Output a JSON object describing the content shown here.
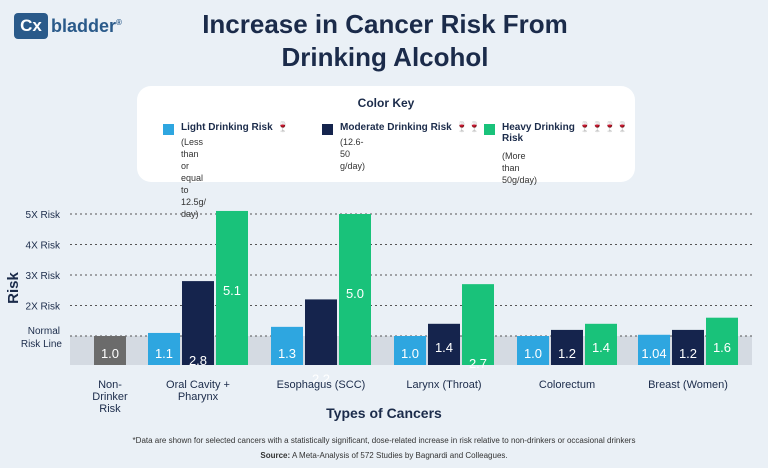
{
  "logo": {
    "mark": "Cx",
    "text": "bladder",
    "reg": "®"
  },
  "title_line1": "Increase in Cancer Risk From",
  "title_line2": "Drinking Alcohol",
  "key": {
    "title": "Color Key",
    "items": [
      {
        "label": "Light Drinking Risk",
        "glasses": "🍷",
        "desc1": "(Less than or equal to 12.5g/",
        "desc2": "day)",
        "color": "#2ea6e0"
      },
      {
        "label": "Moderate Drinking Risk",
        "glasses": "🍷🍷",
        "desc1": "(12.6-50 g/day)",
        "desc2": "",
        "color": "#15244d"
      },
      {
        "label": "Heavy Drinking",
        "label2": "Risk",
        "glasses": "🍷🍷🍷🍷",
        "desc1": "(More than 50g/day)",
        "desc2": "",
        "color": "#19c27a"
      }
    ]
  },
  "footnote": "*Data are shown for selected cancers with a statistically significant, dose-related increase in risk relative to non-drinkers or occasional drinkers",
  "source_label": "Source:",
  "source_text": " A Meta-Analysis of 572 Studies by Bagnardi and Colleagues.",
  "chart_data": {
    "type": "bar",
    "ylabel": "Risk",
    "xlabel": "Types of Cancers",
    "ylim": [
      0.8,
      5.1
    ],
    "yticks": [
      {
        "value": 1,
        "label1": "Normal",
        "label2": "Risk Line"
      },
      {
        "value": 2,
        "label1": "2X Risk",
        "label2": ""
      },
      {
        "value": 3,
        "label1": "3X Risk",
        "label2": ""
      },
      {
        "value": 4,
        "label1": "4X Risk",
        "label2": ""
      },
      {
        "value": 5,
        "label1": "5X Risk",
        "label2": ""
      }
    ],
    "categories": [
      {
        "label": [
          "Non-",
          "Drinker",
          "Risk"
        ],
        "bars": [
          {
            "series": "none",
            "value": 1.0,
            "text": "1.0"
          }
        ]
      },
      {
        "label": [
          "Oral Cavity +",
          "Pharynx"
        ],
        "bars": [
          {
            "series": "light",
            "value": 1.1,
            "text": "1.1"
          },
          {
            "series": "moderate",
            "value": 2.8,
            "text": "2.8"
          },
          {
            "series": "heavy",
            "value": 5.1,
            "text": "5.1"
          }
        ]
      },
      {
        "label": [
          "Esophagus (SCC)"
        ],
        "bars": [
          {
            "series": "light",
            "value": 1.3,
            "text": "1.3"
          },
          {
            "series": "moderate",
            "value": 2.2,
            "text": "2.2"
          },
          {
            "series": "heavy",
            "value": 5.0,
            "text": "5.0"
          }
        ]
      },
      {
        "label": [
          "Larynx (Throat)"
        ],
        "bars": [
          {
            "series": "light",
            "value": 1.0,
            "text": "1.0"
          },
          {
            "series": "moderate",
            "value": 1.4,
            "text": "1.4"
          },
          {
            "series": "heavy",
            "value": 2.7,
            "text": "2.7"
          }
        ]
      },
      {
        "label": [
          "Colorectum"
        ],
        "bars": [
          {
            "series": "light",
            "value": 1.0,
            "text": "1.0"
          },
          {
            "series": "moderate",
            "value": 1.2,
            "text": "1.2"
          },
          {
            "series": "heavy",
            "value": 1.4,
            "text": "1.4"
          }
        ]
      },
      {
        "label": [
          "Breast (Women)"
        ],
        "bars": [
          {
            "series": "light",
            "value": 1.04,
            "text": "1.04"
          },
          {
            "series": "moderate",
            "value": 1.2,
            "text": "1.2"
          },
          {
            "series": "heavy",
            "value": 1.6,
            "text": "1.6"
          }
        ]
      }
    ],
    "colors": {
      "none": "#6b6b6b",
      "light": "#2ea6e0",
      "moderate": "#15244d",
      "heavy": "#19c27a"
    },
    "grid": true
  }
}
